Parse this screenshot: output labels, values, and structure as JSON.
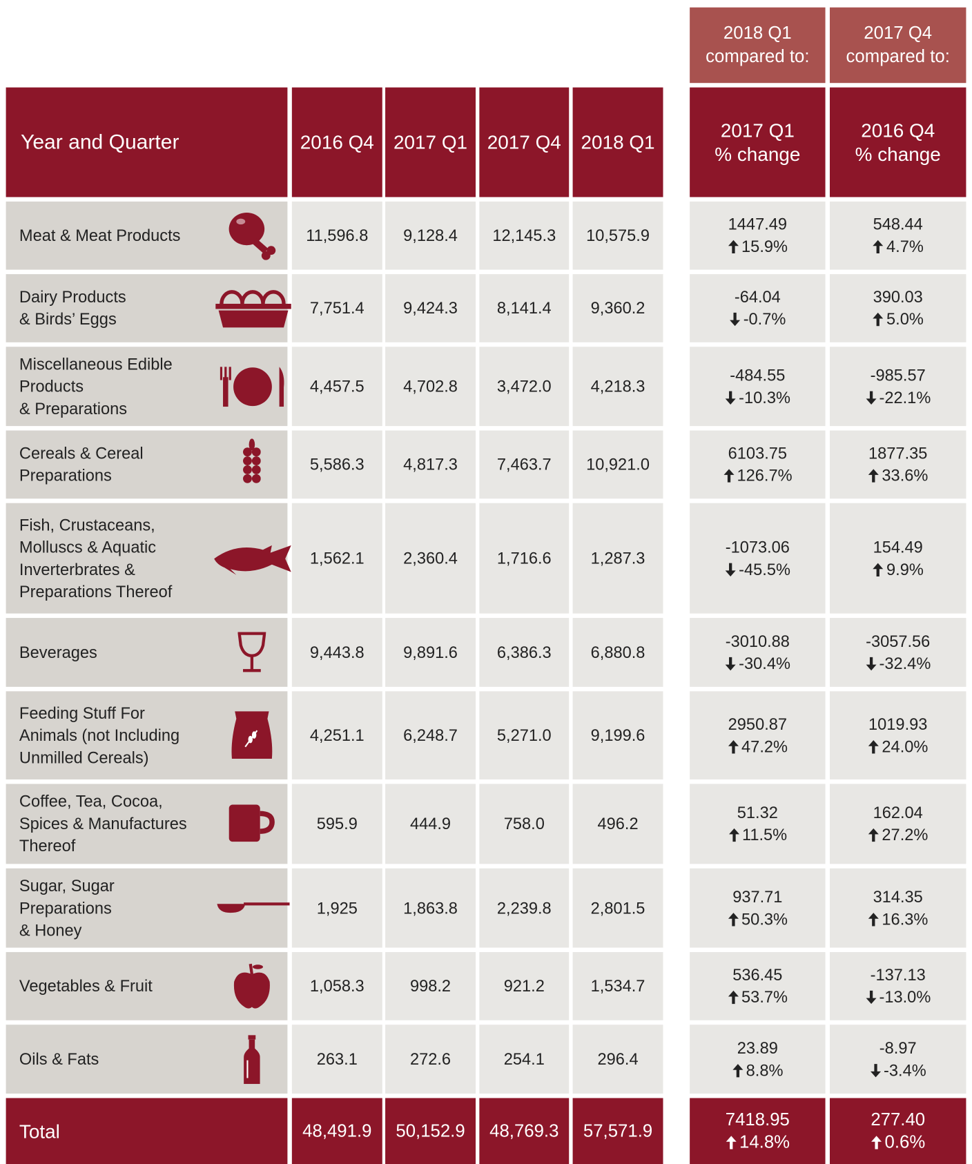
{
  "table": {
    "top_header": [
      "2018 Q1\ncompared to:",
      "2017 Q4\ncompared to:"
    ],
    "header": [
      "Year and Quarter",
      "2016 Q4",
      "2017 Q1",
      "2017 Q4",
      "2018 Q1",
      "2017 Q1\n% change",
      "2016 Q4\n% change"
    ],
    "rows": [
      {
        "label": "Meat & Meat Products",
        "values": [
          "11,596.8",
          "9,128.4",
          "12,145.3",
          "10,575.9"
        ],
        "changes": [
          {
            "value": "1447.49",
            "pct": "15.9%"
          },
          {
            "value": "548.44",
            "pct": "4.7%"
          }
        ]
      },
      {
        "label": "Dairy Products\n& Birds’ Eggs",
        "values": [
          "7,751.4",
          "9,424.3",
          "8,141.4",
          "9,360.2"
        ],
        "changes": [
          {
            "value": "-64.04",
            "pct": "-0.7%"
          },
          {
            "value": "390.03",
            "pct": "5.0%"
          }
        ]
      },
      {
        "label": "Miscellaneous Edible\nProducts\n& Preparations",
        "values": [
          "4,457.5",
          "4,702.8",
          "3,472.0",
          "4,218.3"
        ],
        "changes": [
          {
            "value": "-484.55",
            "pct": "-10.3%"
          },
          {
            "value": "-985.57",
            "pct": "-22.1%"
          }
        ]
      },
      {
        "label": "Cereals & Cereal\nPreparations",
        "values": [
          "5,586.3",
          "4,817.3",
          "7,463.7",
          "10,921.0"
        ],
        "changes": [
          {
            "value": "6103.75",
            "pct": "126.7%"
          },
          {
            "value": "1877.35",
            "pct": "33.6%"
          }
        ]
      },
      {
        "label": "Fish, Crustaceans,\nMolluscs & Aquatic\nInverterbrates &\nPreparations Thereof",
        "values": [
          "1,562.1",
          "2,360.4",
          "1,716.6",
          "1,287.3"
        ],
        "changes": [
          {
            "value": "-1073.06",
            "pct": "-45.5%"
          },
          {
            "value": "154.49",
            "pct": "9.9%"
          }
        ]
      },
      {
        "label": "Beverages",
        "values": [
          "9,443.8",
          "9,891.6",
          "6,386.3",
          "6,880.8"
        ],
        "changes": [
          {
            "value": "-3010.88",
            "pct": "-30.4%"
          },
          {
            "value": "-3057.56",
            "pct": "-32.4%"
          }
        ]
      },
      {
        "label": "Feeding Stuff For\nAnimals (not Including\nUnmilled Cereals)",
        "values": [
          "4,251.1",
          "6,248.7",
          "5,271.0",
          "9,199.6"
        ],
        "changes": [
          {
            "value": "2950.87",
            "pct": "47.2%"
          },
          {
            "value": "1019.93",
            "pct": "24.0%"
          }
        ]
      },
      {
        "label": "Coffee, Tea, Cocoa,\nSpices & Manufactures\nThereof",
        "values": [
          "595.9",
          "444.9",
          "758.0",
          "496.2"
        ],
        "changes": [
          {
            "value": "51.32",
            "pct": "11.5%"
          },
          {
            "value": "162.04",
            "pct": "27.2%"
          }
        ]
      },
      {
        "label": "Sugar, Sugar\nPreparations\n& Honey",
        "values": [
          "1,925",
          "1,863.8",
          "2,239.8",
          "2,801.5"
        ],
        "changes": [
          {
            "value": "937.71",
            "pct": "50.3%"
          },
          {
            "value": "314.35",
            "pct": "16.3%"
          }
        ]
      },
      {
        "label": "Vegetables & Fruit",
        "values": [
          "1,058.3",
          "998.2",
          "921.2",
          "1,534.7"
        ],
        "changes": [
          {
            "value": "536.45",
            "pct": "53.7%"
          },
          {
            "value": "-137.13",
            "pct": "-13.0%"
          }
        ]
      },
      {
        "label": "Oils & Fats",
        "values": [
          "263.1",
          "272.6",
          "254.1",
          "296.4"
        ],
        "changes": [
          {
            "value": "23.89",
            "pct": "8.8%"
          },
          {
            "value": "-8.97",
            "pct": "-3.4%"
          }
        ]
      }
    ],
    "total": {
      "label": "Total",
      "values": [
        "48,491.9",
        "50,152.9",
        "48,769.3",
        "57,571.9"
      ],
      "changes": [
        {
          "value": "7418.95",
          "pct": "14.8%"
        },
        {
          "value": "277.40",
          "pct": "0.6%"
        }
      ]
    }
  }
}
